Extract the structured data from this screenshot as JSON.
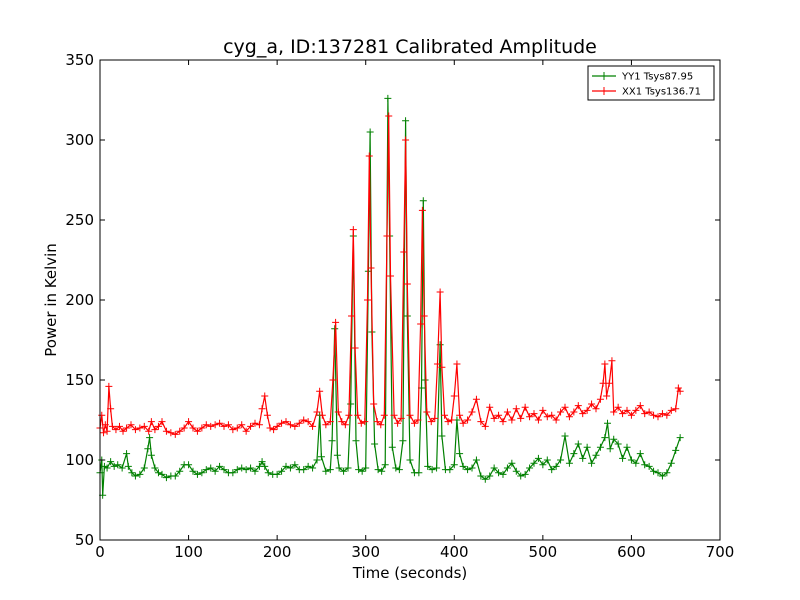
{
  "chart_data": {
    "type": "line",
    "title": "cyg_a, ID:137281 Calibrated Amplitude",
    "xlabel": "Time (seconds)",
    "ylabel": "Power in Kelvin",
    "xlim": [
      0,
      700
    ],
    "ylim": [
      50,
      350
    ],
    "xticks": [
      "0",
      "100",
      "200",
      "300",
      "400",
      "500",
      "600",
      "700"
    ],
    "yticks": [
      "50",
      "100",
      "150",
      "200",
      "250",
      "300",
      "350"
    ],
    "grid": false,
    "legend_position": "top-right",
    "marker": "plus",
    "series": [
      {
        "name": "YY1 Tsys87.95",
        "color": "#008000",
        "points": [
          [
            0,
            92
          ],
          [
            2,
            100
          ],
          [
            3,
            78
          ],
          [
            5,
            96
          ],
          [
            8,
            95
          ],
          [
            12,
            99
          ],
          [
            16,
            96
          ],
          [
            20,
            97
          ],
          [
            25,
            95
          ],
          [
            30,
            104
          ],
          [
            32,
            96
          ],
          [
            36,
            92
          ],
          [
            40,
            90
          ],
          [
            45,
            91
          ],
          [
            50,
            95
          ],
          [
            54,
            107
          ],
          [
            56,
            114
          ],
          [
            58,
            103
          ],
          [
            62,
            95
          ],
          [
            66,
            92
          ],
          [
            70,
            91
          ],
          [
            75,
            89
          ],
          [
            80,
            90
          ],
          [
            85,
            90
          ],
          [
            90,
            93
          ],
          [
            95,
            97
          ],
          [
            100,
            97
          ],
          [
            105,
            93
          ],
          [
            110,
            91
          ],
          [
            115,
            92
          ],
          [
            120,
            94
          ],
          [
            125,
            95
          ],
          [
            130,
            93
          ],
          [
            135,
            96
          ],
          [
            140,
            94
          ],
          [
            145,
            92
          ],
          [
            150,
            92
          ],
          [
            155,
            94
          ],
          [
            160,
            95
          ],
          [
            165,
            94
          ],
          [
            170,
            95
          ],
          [
            175,
            93
          ],
          [
            180,
            96
          ],
          [
            183,
            99
          ],
          [
            186,
            96
          ],
          [
            190,
            92
          ],
          [
            195,
            91
          ],
          [
            200,
            91
          ],
          [
            205,
            93
          ],
          [
            210,
            96
          ],
          [
            215,
            95
          ],
          [
            220,
            97
          ],
          [
            225,
            94
          ],
          [
            230,
            94
          ],
          [
            235,
            96
          ],
          [
            240,
            95
          ],
          [
            245,
            100
          ],
          [
            248,
            128
          ],
          [
            250,
            102
          ],
          [
            255,
            93
          ],
          [
            260,
            94
          ],
          [
            262,
            112
          ],
          [
            265,
            182
          ],
          [
            268,
            103
          ],
          [
            270,
            95
          ],
          [
            275,
            93
          ],
          [
            280,
            95
          ],
          [
            283,
            135
          ],
          [
            286,
            240
          ],
          [
            289,
            112
          ],
          [
            292,
            94
          ],
          [
            296,
            93
          ],
          [
            300,
            95
          ],
          [
            303,
            218
          ],
          [
            305,
            305
          ],
          [
            307,
            180
          ],
          [
            310,
            110
          ],
          [
            314,
            94
          ],
          [
            318,
            93
          ],
          [
            322,
            97
          ],
          [
            325,
            326
          ],
          [
            327,
            240
          ],
          [
            330,
            108
          ],
          [
            334,
            95
          ],
          [
            338,
            94
          ],
          [
            342,
            112
          ],
          [
            345,
            312
          ],
          [
            347,
            190
          ],
          [
            350,
            100
          ],
          [
            355,
            92
          ],
          [
            360,
            92
          ],
          [
            363,
            145
          ],
          [
            365,
            262
          ],
          [
            367,
            150
          ],
          [
            370,
            96
          ],
          [
            375,
            94
          ],
          [
            380,
            95
          ],
          [
            384,
            172
          ],
          [
            386,
            115
          ],
          [
            390,
            94
          ],
          [
            395,
            94
          ],
          [
            400,
            97
          ],
          [
            403,
            125
          ],
          [
            406,
            104
          ],
          [
            410,
            96
          ],
          [
            415,
            94
          ],
          [
            420,
            95
          ],
          [
            425,
            100
          ],
          [
            430,
            90
          ],
          [
            435,
            88
          ],
          [
            440,
            90
          ],
          [
            445,
            95
          ],
          [
            450,
            92
          ],
          [
            455,
            91
          ],
          [
            460,
            95
          ],
          [
            465,
            98
          ],
          [
            470,
            93
          ],
          [
            475,
            90
          ],
          [
            480,
            91
          ],
          [
            485,
            95
          ],
          [
            490,
            98
          ],
          [
            495,
            101
          ],
          [
            500,
            97
          ],
          [
            505,
            100
          ],
          [
            510,
            94
          ],
          [
            515,
            96
          ],
          [
            520,
            100
          ],
          [
            525,
            115
          ],
          [
            530,
            98
          ],
          [
            535,
            104
          ],
          [
            540,
            110
          ],
          [
            545,
            101
          ],
          [
            550,
            108
          ],
          [
            555,
            98
          ],
          [
            560,
            103
          ],
          [
            565,
            108
          ],
          [
            570,
            114
          ],
          [
            573,
            123
          ],
          [
            576,
            107
          ],
          [
            580,
            113
          ],
          [
            585,
            110
          ],
          [
            590,
            101
          ],
          [
            595,
            108
          ],
          [
            600,
            100
          ],
          [
            605,
            98
          ],
          [
            610,
            104
          ],
          [
            615,
            97
          ],
          [
            620,
            96
          ],
          [
            625,
            93
          ],
          [
            630,
            92
          ],
          [
            635,
            90
          ],
          [
            640,
            92
          ],
          [
            645,
            98
          ],
          [
            650,
            106
          ],
          [
            655,
            114
          ]
        ]
      },
      {
        "name": "XX1 Tsys136.71",
        "color": "#ff0000",
        "points": [
          [
            0,
            120
          ],
          [
            2,
            128
          ],
          [
            4,
            117
          ],
          [
            6,
            122
          ],
          [
            8,
            118
          ],
          [
            10,
            146
          ],
          [
            12,
            132
          ],
          [
            14,
            121
          ],
          [
            18,
            119
          ],
          [
            22,
            121
          ],
          [
            26,
            118
          ],
          [
            30,
            120
          ],
          [
            35,
            122
          ],
          [
            40,
            119
          ],
          [
            45,
            120
          ],
          [
            50,
            121
          ],
          [
            55,
            118
          ],
          [
            58,
            124
          ],
          [
            62,
            119
          ],
          [
            66,
            121
          ],
          [
            70,
            124
          ],
          [
            75,
            118
          ],
          [
            80,
            117
          ],
          [
            85,
            116
          ],
          [
            90,
            118
          ],
          [
            95,
            120
          ],
          [
            100,
            124
          ],
          [
            105,
            120
          ],
          [
            110,
            118
          ],
          [
            115,
            120
          ],
          [
            120,
            122
          ],
          [
            125,
            121
          ],
          [
            130,
            122
          ],
          [
            135,
            123
          ],
          [
            140,
            121
          ],
          [
            145,
            122
          ],
          [
            150,
            119
          ],
          [
            155,
            120
          ],
          [
            160,
            122
          ],
          [
            165,
            118
          ],
          [
            170,
            121
          ],
          [
            175,
            123
          ],
          [
            180,
            122
          ],
          [
            183,
            132
          ],
          [
            186,
            140
          ],
          [
            189,
            128
          ],
          [
            192,
            120
          ],
          [
            196,
            119
          ],
          [
            200,
            121
          ],
          [
            205,
            123
          ],
          [
            210,
            124
          ],
          [
            215,
            122
          ],
          [
            220,
            121
          ],
          [
            225,
            123
          ],
          [
            230,
            125
          ],
          [
            235,
            124
          ],
          [
            240,
            121
          ],
          [
            245,
            130
          ],
          [
            248,
            143
          ],
          [
            251,
            128
          ],
          [
            255,
            122
          ],
          [
            260,
            124
          ],
          [
            263,
            150
          ],
          [
            266,
            186
          ],
          [
            269,
            130
          ],
          [
            273,
            124
          ],
          [
            277,
            122
          ],
          [
            281,
            128
          ],
          [
            284,
            190
          ],
          [
            286,
            244
          ],
          [
            288,
            170
          ],
          [
            291,
            128
          ],
          [
            295,
            123
          ],
          [
            299,
            124
          ],
          [
            302,
            200
          ],
          [
            304,
            290
          ],
          [
            306,
            220
          ],
          [
            309,
            135
          ],
          [
            313,
            124
          ],
          [
            317,
            122
          ],
          [
            321,
            128
          ],
          [
            324,
            240
          ],
          [
            326,
            315
          ],
          [
            328,
            215
          ],
          [
            332,
            128
          ],
          [
            336,
            123
          ],
          [
            340,
            126
          ],
          [
            343,
            230
          ],
          [
            345,
            300
          ],
          [
            347,
            210
          ],
          [
            350,
            128
          ],
          [
            355,
            123
          ],
          [
            359,
            125
          ],
          [
            362,
            185
          ],
          [
            364,
            256
          ],
          [
            366,
            190
          ],
          [
            369,
            130
          ],
          [
            374,
            124
          ],
          [
            378,
            126
          ],
          [
            381,
            160
          ],
          [
            384,
            205
          ],
          [
            386,
            158
          ],
          [
            389,
            128
          ],
          [
            393,
            124
          ],
          [
            397,
            125
          ],
          [
            400,
            140
          ],
          [
            403,
            160
          ],
          [
            406,
            128
          ],
          [
            410,
            123
          ],
          [
            415,
            125
          ],
          [
            420,
            130
          ],
          [
            425,
            138
          ],
          [
            430,
            124
          ],
          [
            435,
            121
          ],
          [
            440,
            133
          ],
          [
            445,
            126
          ],
          [
            450,
            128
          ],
          [
            455,
            124
          ],
          [
            460,
            130
          ],
          [
            465,
            125
          ],
          [
            470,
            132
          ],
          [
            475,
            126
          ],
          [
            480,
            133
          ],
          [
            485,
            127
          ],
          [
            490,
            129
          ],
          [
            495,
            125
          ],
          [
            500,
            131
          ],
          [
            505,
            127
          ],
          [
            510,
            128
          ],
          [
            515,
            125
          ],
          [
            520,
            130
          ],
          [
            525,
            133
          ],
          [
            530,
            127
          ],
          [
            535,
            130
          ],
          [
            540,
            134
          ],
          [
            545,
            129
          ],
          [
            550,
            131
          ],
          [
            555,
            135
          ],
          [
            560,
            132
          ],
          [
            565,
            138
          ],
          [
            568,
            148
          ],
          [
            570,
            160
          ],
          [
            572,
            140
          ],
          [
            575,
            148
          ],
          [
            578,
            162
          ],
          [
            580,
            130
          ],
          [
            585,
            133
          ],
          [
            590,
            129
          ],
          [
            595,
            131
          ],
          [
            600,
            128
          ],
          [
            605,
            131
          ],
          [
            610,
            134
          ],
          [
            615,
            129
          ],
          [
            620,
            130
          ],
          [
            625,
            128
          ],
          [
            630,
            127
          ],
          [
            635,
            129
          ],
          [
            640,
            128
          ],
          [
            645,
            131
          ],
          [
            650,
            132
          ],
          [
            653,
            145
          ],
          [
            655,
            143
          ]
        ]
      }
    ]
  }
}
